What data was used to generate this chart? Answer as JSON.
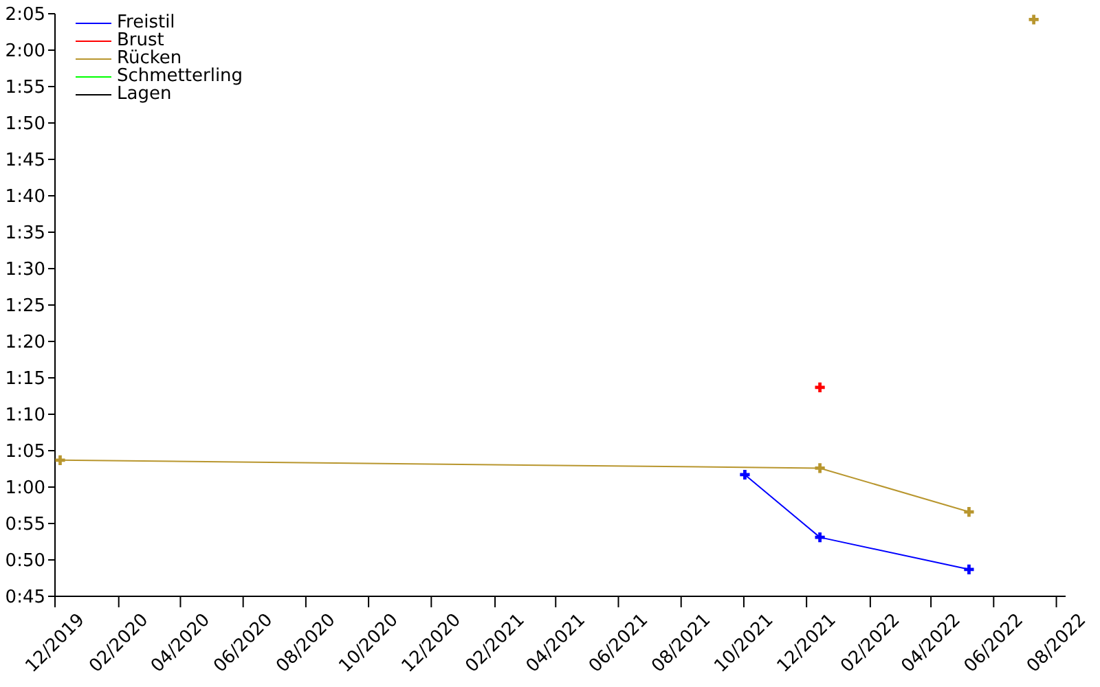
{
  "chart_data": {
    "type": "line",
    "legend": "top left",
    "marker": "cross",
    "line_style": "solid",
    "grid": false,
    "xlim": [
      "2019-12-01",
      "2022-08-10"
    ],
    "xticks": [
      {
        "value": "2019-12-01",
        "label": "12/2019"
      },
      {
        "value": "2020-02-01",
        "label": "02/2020"
      },
      {
        "value": "2020-04-01",
        "label": "04/2020"
      },
      {
        "value": "2020-06-01",
        "label": "06/2020"
      },
      {
        "value": "2020-08-01",
        "label": "08/2020"
      },
      {
        "value": "2020-10-01",
        "label": "10/2020"
      },
      {
        "value": "2020-12-01",
        "label": "12/2020"
      },
      {
        "value": "2021-02-01",
        "label": "02/2021"
      },
      {
        "value": "2021-04-01",
        "label": "04/2021"
      },
      {
        "value": "2021-06-01",
        "label": "06/2021"
      },
      {
        "value": "2021-08-01",
        "label": "08/2021"
      },
      {
        "value": "2021-10-01",
        "label": "10/2021"
      },
      {
        "value": "2021-12-01",
        "label": "12/2021"
      },
      {
        "value": "2022-02-01",
        "label": "02/2022"
      },
      {
        "value": "2022-04-01",
        "label": "04/2022"
      },
      {
        "value": "2022-06-01",
        "label": "06/2022"
      },
      {
        "value": "2022-08-01",
        "label": "08/2022"
      }
    ],
    "ylim": [
      45,
      125
    ],
    "yticks": [
      {
        "value": 45,
        "label": "0:45"
      },
      {
        "value": 50,
        "label": "0:50"
      },
      {
        "value": 55,
        "label": "0:55"
      },
      {
        "value": 60,
        "label": "1:00"
      },
      {
        "value": 65,
        "label": "1:05"
      },
      {
        "value": 70,
        "label": "1:10"
      },
      {
        "value": 75,
        "label": "1:15"
      },
      {
        "value": 80,
        "label": "1:20"
      },
      {
        "value": 85,
        "label": "1:25"
      },
      {
        "value": 90,
        "label": "1:30"
      },
      {
        "value": 95,
        "label": "1:35"
      },
      {
        "value": 100,
        "label": "1:40"
      },
      {
        "value": 105,
        "label": "1:45"
      },
      {
        "value": 110,
        "label": "1:50"
      },
      {
        "value": 115,
        "label": "1:55"
      },
      {
        "value": 120,
        "label": "2:00"
      },
      {
        "value": 125,
        "label": "2:05"
      }
    ],
    "series": [
      {
        "name": "Freistil",
        "color": "#0000ff",
        "x": [
          "2021-10-02",
          "2021-12-14",
          "2022-05-08"
        ],
        "values": [
          61.7,
          53.1,
          48.7
        ]
      },
      {
        "name": "Brust",
        "color": "#ff0000",
        "x": [
          "2021-12-14"
        ],
        "values": [
          73.7
        ]
      },
      {
        "name": "Rücken",
        "color": "#b8962e",
        "x": [
          "2019-12-06",
          "2021-12-14",
          "2022-05-08",
          "2022-06-10",
          "2022-07-10"
        ],
        "values": [
          63.7,
          62.6,
          56.6,
          null,
          124.2
        ]
      },
      {
        "name": "Schmetterling",
        "color": "#00ff00"
      },
      {
        "name": "Lagen",
        "color": "#000000"
      }
    ]
  }
}
